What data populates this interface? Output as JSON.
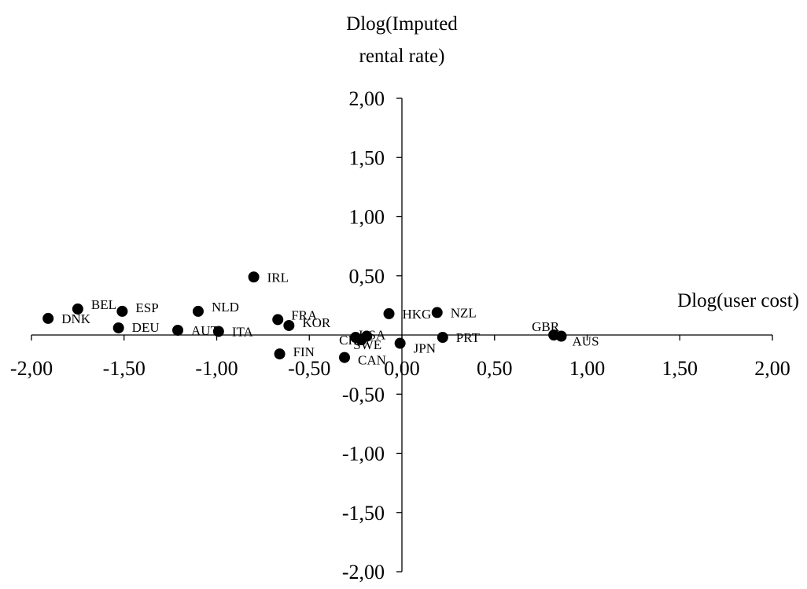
{
  "chart_data": {
    "type": "scatter",
    "title": "",
    "xlabel": "Dlog(user cost)",
    "ylabel_lines": [
      "Dlog(Imputed",
      "rental rate)"
    ],
    "xlim": [
      -2.0,
      2.0
    ],
    "ylim": [
      -2.0,
      2.0
    ],
    "x_ticks": [
      "-2,00",
      "-1,50",
      "-1,00",
      "-0,50",
      "0,00",
      "0,50",
      "1,00",
      "1,50",
      "2,00"
    ],
    "y_ticks": [
      "2,00",
      "1,50",
      "1,00",
      "0,50",
      "-0,50",
      "-1,00",
      "-1,50",
      "-2,00"
    ],
    "grid": false,
    "points": [
      {
        "label": "DNK",
        "x": -1.91,
        "y": 0.14
      },
      {
        "label": "BEL",
        "x": -1.75,
        "y": 0.22
      },
      {
        "label": "ESP",
        "x": -1.51,
        "y": 0.2
      },
      {
        "label": "DEU",
        "x": -1.53,
        "y": 0.06
      },
      {
        "label": "AUT",
        "x": -1.21,
        "y": 0.04
      },
      {
        "label": "NLD",
        "x": -1.1,
        "y": 0.2
      },
      {
        "label": "ITA",
        "x": -0.99,
        "y": 0.03
      },
      {
        "label": "IRL",
        "x": -0.8,
        "y": 0.49
      },
      {
        "label": "FRA",
        "x": -0.67,
        "y": 0.13
      },
      {
        "label": "KOR",
        "x": -0.61,
        "y": 0.08
      },
      {
        "label": "FIN",
        "x": -0.66,
        "y": -0.16
      },
      {
        "label": "CAN",
        "x": -0.31,
        "y": -0.19
      },
      {
        "label": "CHE",
        "x": -0.25,
        "y": -0.02
      },
      {
        "label": "SWE",
        "x": -0.22,
        "y": -0.04
      },
      {
        "label": "USA",
        "x": -0.19,
        "y": -0.01
      },
      {
        "label": "HKG",
        "x": -0.07,
        "y": 0.18
      },
      {
        "label": "JPN",
        "x": -0.01,
        "y": -0.07
      },
      {
        "label": "NZL",
        "x": 0.19,
        "y": 0.19
      },
      {
        "label": "PRT",
        "x": 0.22,
        "y": -0.02
      },
      {
        "label": "GBR",
        "x": 0.82,
        "y": 0.0
      },
      {
        "label": "AUS",
        "x": 0.86,
        "y": -0.01
      }
    ]
  }
}
